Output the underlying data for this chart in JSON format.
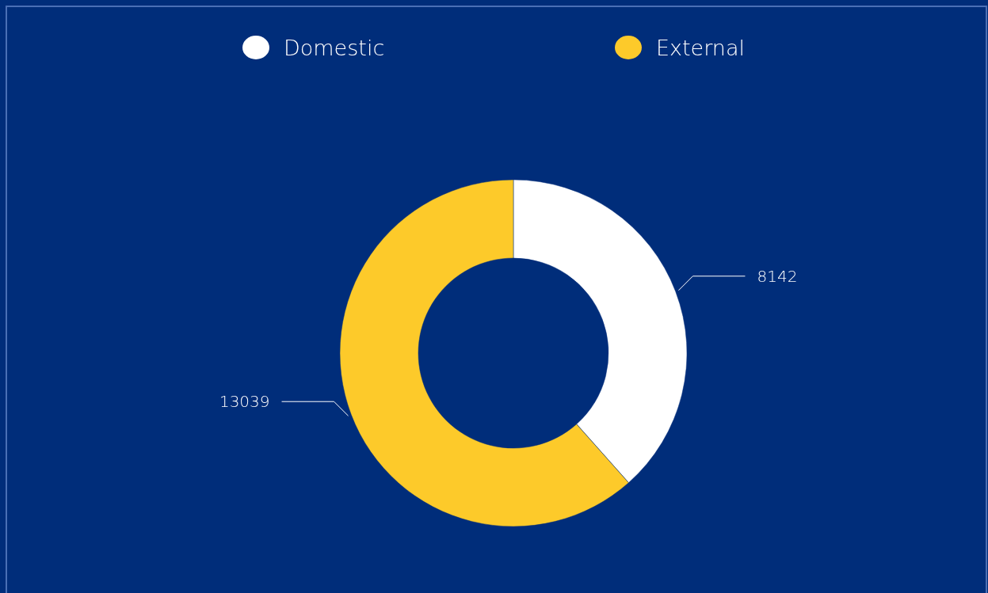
{
  "chart_data": {
    "type": "donut",
    "categories": [
      "Domestic",
      "External"
    ],
    "values": [
      8142,
      13039
    ],
    "colors": [
      "#ffffff",
      "#fdca2a"
    ],
    "data_labels": true,
    "legend": "top"
  }
}
